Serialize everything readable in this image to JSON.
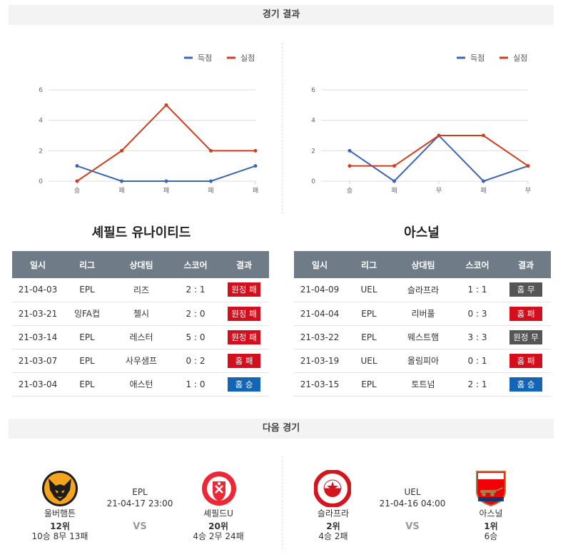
{
  "sections": {
    "results_title": "경기 결과",
    "next_title": "다음 경기"
  },
  "legend": {
    "scored": "득점",
    "conceded": "실점"
  },
  "colors": {
    "scored": "#3a66b5",
    "conceded": "#d13d1c",
    "red": "#d40f1d",
    "blue": "#1565b7",
    "gray": "#555555"
  },
  "chart_data": [
    {
      "type": "line",
      "categories": [
        "승",
        "패",
        "패",
        "패",
        "패"
      ],
      "series": [
        {
          "name": "득점",
          "values": [
            1,
            0,
            0,
            0,
            1
          ]
        },
        {
          "name": "실점",
          "values": [
            0,
            2,
            5,
            2,
            2
          ]
        }
      ],
      "ylim": [
        0,
        6
      ],
      "yticks": [
        0,
        2,
        4,
        6
      ],
      "legend": "top-right",
      "grid": true
    },
    {
      "type": "line",
      "categories": [
        "승",
        "패",
        "무",
        "패",
        "무"
      ],
      "series": [
        {
          "name": "득점",
          "values": [
            2,
            0,
            3,
            0,
            1
          ]
        },
        {
          "name": "실점",
          "values": [
            1,
            1,
            3,
            3,
            1
          ]
        }
      ],
      "ylim": [
        0,
        6
      ],
      "yticks": [
        0,
        2,
        4,
        6
      ],
      "legend": "top-right",
      "grid": true
    }
  ],
  "headers": [
    "일시",
    "리그",
    "상대팀",
    "스코어",
    "결과"
  ],
  "left_team": {
    "name": "셰필드 유나이티드",
    "rows": [
      {
        "date": "21-04-03",
        "league": "EPL",
        "opp": "리즈",
        "score": "2 : 1",
        "result": "원정 패",
        "color": "red"
      },
      {
        "date": "21-03-21",
        "league": "잉FA컵",
        "opp": "첼시",
        "score": "2 : 0",
        "result": "원정 패",
        "color": "red"
      },
      {
        "date": "21-03-14",
        "league": "EPL",
        "opp": "레스터",
        "score": "5 : 0",
        "result": "원정 패",
        "color": "red"
      },
      {
        "date": "21-03-07",
        "league": "EPL",
        "opp": "사우샘프",
        "score": "0 : 2",
        "result": "홈 패",
        "color": "red"
      },
      {
        "date": "21-03-04",
        "league": "EPL",
        "opp": "애스턴",
        "score": "1 : 0",
        "result": "홈 승",
        "color": "blue"
      }
    ]
  },
  "right_team": {
    "name": "아스널",
    "rows": [
      {
        "date": "21-04-09",
        "league": "UEL",
        "opp": "슬라프라",
        "score": "1 : 1",
        "result": "홈 무",
        "color": "gray"
      },
      {
        "date": "21-04-04",
        "league": "EPL",
        "opp": "리버풀",
        "score": "0 : 3",
        "result": "홈 패",
        "color": "red"
      },
      {
        "date": "21-03-22",
        "league": "EPL",
        "opp": "웨스트햄",
        "score": "3 : 3",
        "result": "원정 무",
        "color": "gray"
      },
      {
        "date": "21-03-19",
        "league": "UEL",
        "opp": "올림피아",
        "score": "0 : 1",
        "result": "홈 패",
        "color": "red"
      },
      {
        "date": "21-03-15",
        "league": "EPL",
        "opp": "토트넘",
        "score": "2 : 1",
        "result": "홈 승",
        "color": "blue"
      }
    ]
  },
  "next_matches": [
    {
      "league": "EPL",
      "time": "21-04-17 23:00",
      "vs": "VS",
      "home": {
        "name": "울버햄튼",
        "rank": "12위",
        "record": "10승 8무 13패",
        "logo": "wolves-logo"
      },
      "away": {
        "name": "셰필드U",
        "rank": "20위",
        "record": "4승 2무 24패",
        "logo": "sheffield-logo"
      }
    },
    {
      "league": "UEL",
      "time": "21-04-16 04:00",
      "vs": "VS",
      "home": {
        "name": "슬라프라",
        "rank": "2위",
        "record": "4승 2패",
        "logo": "slavia-logo"
      },
      "away": {
        "name": "아스널",
        "rank": "1위",
        "record": "6승",
        "logo": "arsenal-logo"
      }
    }
  ]
}
